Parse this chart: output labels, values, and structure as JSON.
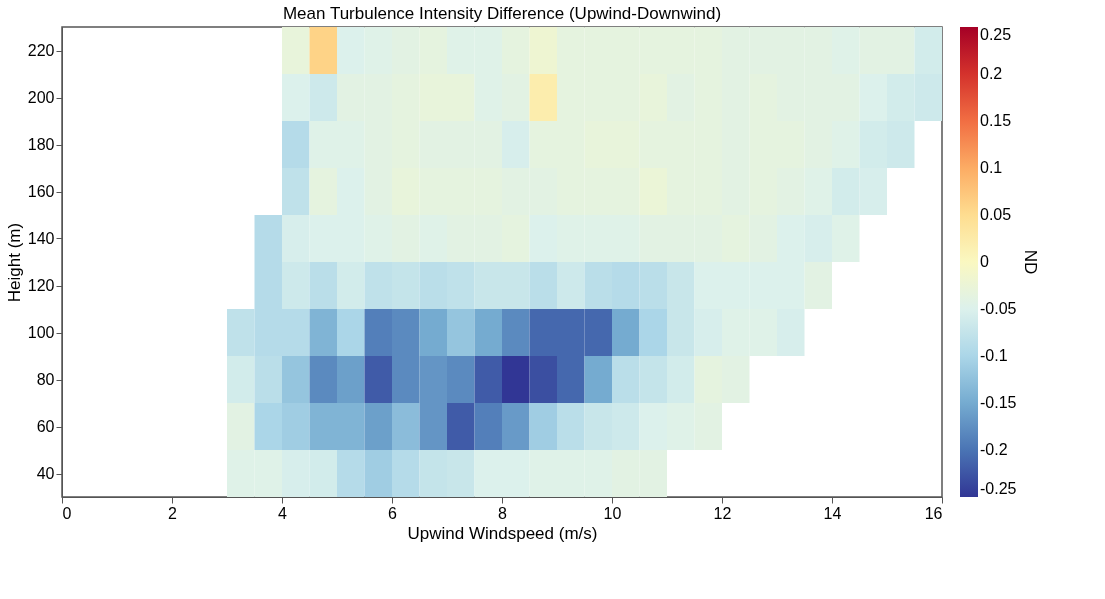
{
  "chart_data": {
    "type": "heatmap",
    "title": "Mean Turbulence Intensity Difference (Upwind-Downwind)",
    "xlabel": "Upwind Windspeed (m/s)",
    "ylabel": "Height (m)",
    "clabel": "ND",
    "x": [
      3.25,
      3.75,
      4.25,
      4.75,
      5.25,
      5.75,
      6.25,
      6.75,
      7.25,
      7.75,
      8.25,
      8.75,
      9.25,
      9.75,
      10.25,
      10.75,
      11.25,
      11.75,
      12.25,
      12.75,
      13.25,
      13.75,
      14.25,
      14.75,
      15.25,
      15.75
    ],
    "y": [
      220,
      200,
      180,
      160,
      140,
      120,
      100,
      80,
      60,
      40
    ],
    "cells": [
      [
        null,
        null,
        -0.03,
        0.06,
        -0.05,
        -0.045,
        -0.04,
        -0.035,
        -0.045,
        -0.045,
        -0.035,
        -0.02,
        -0.035,
        -0.035,
        -0.035,
        -0.035,
        -0.035,
        -0.035,
        -0.04,
        -0.04,
        -0.04,
        -0.04,
        -0.045,
        -0.04,
        -0.04,
        -0.06
      ],
      [
        null,
        null,
        -0.05,
        -0.065,
        -0.04,
        -0.04,
        -0.035,
        -0.03,
        -0.03,
        -0.045,
        -0.04,
        0.02,
        -0.035,
        -0.035,
        -0.035,
        -0.03,
        -0.04,
        -0.035,
        -0.04,
        -0.035,
        -0.04,
        -0.04,
        -0.04,
        -0.05,
        -0.06,
        -0.065
      ],
      [
        null,
        null,
        -0.09,
        -0.045,
        -0.045,
        -0.04,
        -0.035,
        -0.04,
        -0.04,
        -0.04,
        -0.055,
        -0.035,
        -0.035,
        -0.03,
        -0.03,
        -0.035,
        -0.035,
        -0.035,
        -0.04,
        -0.035,
        -0.035,
        -0.04,
        -0.045,
        -0.06,
        -0.065,
        null
      ],
      [
        null,
        null,
        -0.08,
        -0.035,
        -0.05,
        -0.04,
        -0.03,
        -0.035,
        -0.035,
        -0.035,
        -0.04,
        -0.04,
        -0.035,
        -0.035,
        -0.035,
        -0.025,
        -0.035,
        -0.035,
        -0.04,
        -0.035,
        -0.04,
        -0.045,
        -0.06,
        -0.055,
        null,
        null
      ],
      [
        null,
        -0.09,
        -0.055,
        -0.05,
        -0.05,
        -0.045,
        -0.04,
        -0.045,
        -0.04,
        -0.04,
        -0.035,
        -0.05,
        -0.045,
        -0.045,
        -0.045,
        -0.04,
        -0.04,
        -0.04,
        -0.035,
        -0.04,
        -0.05,
        -0.055,
        -0.045,
        null,
        null,
        null
      ],
      [
        null,
        -0.09,
        -0.065,
        -0.085,
        -0.06,
        -0.08,
        -0.075,
        -0.085,
        -0.08,
        -0.07,
        -0.07,
        -0.085,
        -0.065,
        -0.085,
        -0.09,
        -0.085,
        -0.07,
        -0.05,
        -0.05,
        -0.05,
        -0.05,
        -0.04,
        null,
        null,
        null,
        null
      ],
      [
        -0.08,
        -0.09,
        -0.09,
        -0.14,
        -0.1,
        -0.19,
        -0.18,
        -0.15,
        -0.12,
        -0.15,
        -0.18,
        -0.21,
        -0.21,
        -0.21,
        -0.15,
        -0.1,
        -0.07,
        -0.055,
        -0.045,
        -0.045,
        -0.055,
        null,
        null,
        null,
        null,
        null
      ],
      [
        -0.06,
        -0.085,
        -0.12,
        -0.18,
        -0.16,
        -0.22,
        -0.18,
        -0.17,
        -0.18,
        -0.22,
        -0.25,
        -0.23,
        -0.21,
        -0.15,
        -0.085,
        -0.075,
        -0.06,
        -0.035,
        -0.04,
        null,
        null,
        null,
        null,
        null,
        null,
        null
      ],
      [
        -0.04,
        -0.1,
        -0.11,
        -0.14,
        -0.14,
        -0.16,
        -0.13,
        -0.17,
        -0.22,
        -0.19,
        -0.165,
        -0.11,
        -0.085,
        -0.07,
        -0.065,
        -0.05,
        -0.045,
        -0.04,
        null,
        null,
        null,
        null,
        null,
        null,
        null,
        null
      ],
      [
        -0.045,
        -0.045,
        -0.055,
        -0.06,
        -0.09,
        -0.11,
        -0.09,
        -0.075,
        -0.07,
        -0.05,
        -0.05,
        -0.045,
        -0.045,
        -0.045,
        -0.04,
        -0.04,
        null,
        null,
        null,
        null,
        null,
        null,
        null,
        null,
        null,
        null
      ]
    ],
    "xlim": [
      0,
      16
    ],
    "xticks": [
      0,
      2,
      4,
      6,
      8,
      10,
      12,
      14,
      16
    ],
    "ylim": [
      30,
      230
    ],
    "yticks": [
      40,
      60,
      80,
      100,
      120,
      140,
      160,
      180,
      200,
      220
    ],
    "clim": [
      -0.25,
      0.25
    ],
    "cticks": [
      -0.25,
      -0.2,
      -0.15,
      -0.1,
      -0.05,
      0,
      0.05,
      0.1,
      0.15,
      0.2,
      0.25
    ],
    "grid": false
  }
}
